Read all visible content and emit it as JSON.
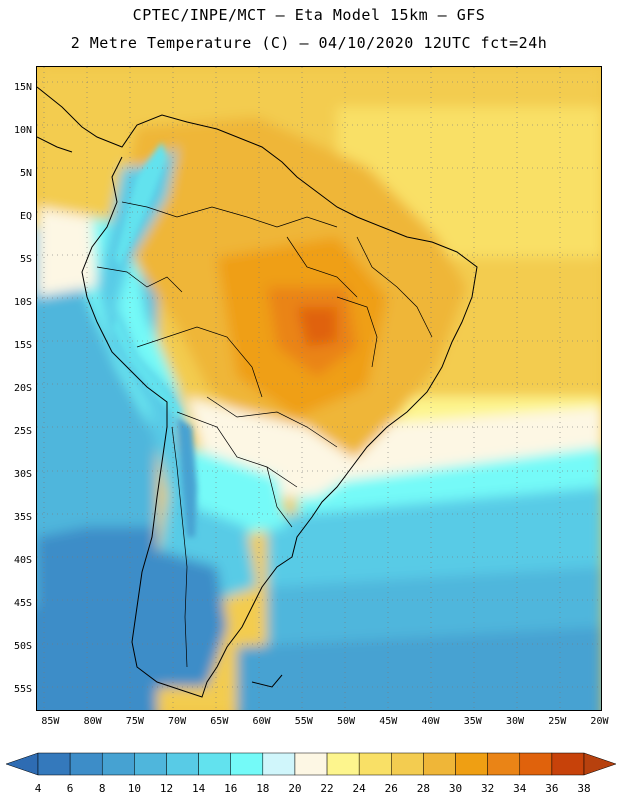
{
  "header": {
    "line1": "CPTEC/INPE/MCT –  Eta Model 15km – GFS",
    "line2": "2 Metre Temperature (C) – 04/10/2020 12UTC fct=24h"
  },
  "map": {
    "variable": "2 Metre Temperature",
    "units": "C",
    "model": "Eta Model 15km",
    "initialization": "04/10/2020 12UTC",
    "forecast_hour": 24,
    "lat_range": [
      -57.5,
      17.5
    ],
    "lon_range": [
      -86.7,
      -19.7
    ],
    "lat_labels": [
      {
        "value": 15,
        "text": "15N"
      },
      {
        "value": 10,
        "text": "10N"
      },
      {
        "value": 5,
        "text": "5N"
      },
      {
        "value": 0,
        "text": "EQ"
      },
      {
        "value": -5,
        "text": "5S"
      },
      {
        "value": -10,
        "text": "10S"
      },
      {
        "value": -15,
        "text": "15S"
      },
      {
        "value": -20,
        "text": "20S"
      },
      {
        "value": -25,
        "text": "25S"
      },
      {
        "value": -30,
        "text": "30S"
      },
      {
        "value": -35,
        "text": "35S"
      },
      {
        "value": -40,
        "text": "40S"
      },
      {
        "value": -45,
        "text": "45S"
      },
      {
        "value": -50,
        "text": "50S"
      },
      {
        "value": -55,
        "text": "55S"
      }
    ],
    "lon_labels": [
      {
        "value": -85,
        "text": "85W"
      },
      {
        "value": -80,
        "text": "80W"
      },
      {
        "value": -75,
        "text": "75W"
      },
      {
        "value": -70,
        "text": "70W"
      },
      {
        "value": -65,
        "text": "65W"
      },
      {
        "value": -60,
        "text": "60W"
      },
      {
        "value": -55,
        "text": "55W"
      },
      {
        "value": -50,
        "text": "50W"
      },
      {
        "value": -45,
        "text": "45W"
      },
      {
        "value": -40,
        "text": "40W"
      },
      {
        "value": -35,
        "text": "35W"
      },
      {
        "value": -30,
        "text": "30W"
      },
      {
        "value": -25,
        "text": "25W"
      },
      {
        "value": -20,
        "text": "20W"
      }
    ]
  },
  "colorbar": {
    "labels": [
      "4",
      "6",
      "8",
      "10",
      "12",
      "14",
      "16",
      "18",
      "20",
      "22",
      "24",
      "26",
      "28",
      "30",
      "32",
      "34",
      "36",
      "38"
    ],
    "low_color": "#2e6cb3",
    "high_color": "#b7410e",
    "colors": [
      "#3479bc",
      "#3d8dc8",
      "#46a2d2",
      "#4fb6dc",
      "#58cbe6",
      "#62e2ee",
      "#74faf8",
      "#d0f6fb",
      "#fdf7e4",
      "#fdf58d",
      "#f9e066",
      "#f3cc50",
      "#efb638",
      "#ef9f13",
      "#ea8416",
      "#e0620c",
      "#c7420a"
    ]
  }
}
